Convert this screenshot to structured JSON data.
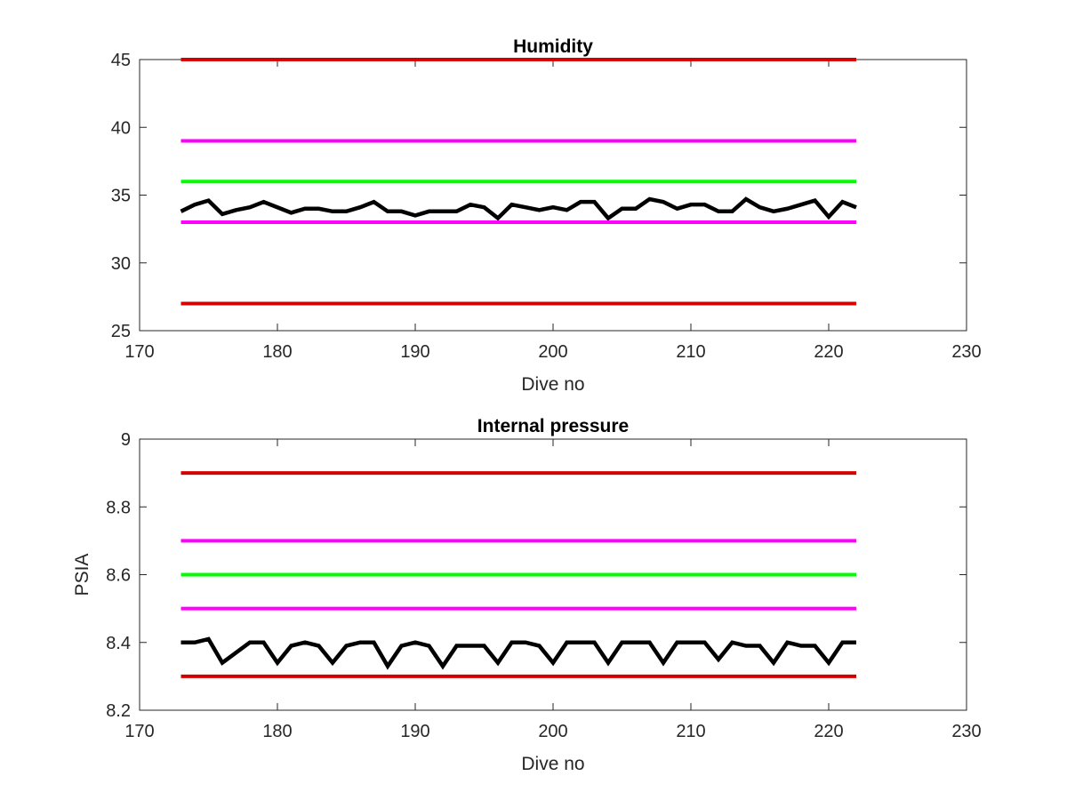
{
  "chart_data": [
    {
      "type": "line",
      "title": "Humidity",
      "xlabel": "Dive no",
      "ylabel": "",
      "xlim": [
        170,
        230
      ],
      "ylim": [
        25,
        45
      ],
      "xticks": [
        170,
        180,
        190,
        200,
        210,
        220,
        230
      ],
      "yticks": [
        25,
        30,
        35,
        40,
        45
      ],
      "grid": false,
      "legend": "none",
      "series": [
        {
          "color": "#d40000",
          "x": [
            173,
            222
          ],
          "values": [
            45,
            45
          ]
        },
        {
          "color": "#ff00ff",
          "x": [
            173,
            222
          ],
          "values": [
            39,
            39
          ]
        },
        {
          "color": "#00ff00",
          "x": [
            173,
            222
          ],
          "values": [
            36,
            36
          ]
        },
        {
          "color": "#000000",
          "x": [
            173,
            174,
            175,
            176,
            177,
            178,
            179,
            180,
            181,
            182,
            183,
            184,
            185,
            186,
            187,
            188,
            189,
            190,
            191,
            192,
            193,
            194,
            195,
            196,
            197,
            198,
            199,
            200,
            201,
            202,
            203,
            204,
            205,
            206,
            207,
            208,
            209,
            210,
            211,
            212,
            213,
            214,
            215,
            216,
            217,
            218,
            219,
            220,
            221,
            222
          ],
          "values": [
            33.8,
            34.3,
            34.6,
            33.6,
            33.9,
            34.1,
            34.5,
            34.1,
            33.7,
            34.0,
            34.0,
            33.8,
            33.8,
            34.1,
            34.5,
            33.8,
            33.8,
            33.5,
            33.8,
            33.8,
            33.8,
            34.3,
            34.1,
            33.3,
            34.3,
            34.1,
            33.9,
            34.1,
            33.9,
            34.5,
            34.5,
            33.3,
            34.0,
            34.0,
            34.7,
            34.5,
            34.0,
            34.3,
            34.3,
            33.8,
            33.8,
            34.7,
            34.1,
            33.8,
            34.0,
            34.3,
            34.6,
            33.4,
            34.5,
            34.1
          ]
        },
        {
          "color": "#ff00ff",
          "x": [
            173,
            222
          ],
          "values": [
            33,
            33
          ]
        },
        {
          "color": "#d40000",
          "x": [
            173,
            222
          ],
          "values": [
            27,
            27
          ]
        }
      ]
    },
    {
      "type": "line",
      "title": "Internal pressure",
      "xlabel": "Dive no",
      "ylabel": "PSIA",
      "xlim": [
        170,
        230
      ],
      "ylim": [
        8.2,
        9
      ],
      "xticks": [
        170,
        180,
        190,
        200,
        210,
        220,
        230
      ],
      "yticks": [
        8.2,
        8.4,
        8.6,
        8.8,
        9
      ],
      "ytick_labels": [
        "8.2",
        "8.4",
        "8.6",
        "8.8",
        "9"
      ],
      "grid": false,
      "legend": "none",
      "series": [
        {
          "color": "#d40000",
          "x": [
            173,
            222
          ],
          "values": [
            8.9,
            8.9
          ]
        },
        {
          "color": "#ff00ff",
          "x": [
            173,
            222
          ],
          "values": [
            8.7,
            8.7
          ]
        },
        {
          "color": "#00ff00",
          "x": [
            173,
            222
          ],
          "values": [
            8.6,
            8.6
          ]
        },
        {
          "color": "#ff00ff",
          "x": [
            173,
            222
          ],
          "values": [
            8.5,
            8.5
          ]
        },
        {
          "color": "#000000",
          "x": [
            173,
            174,
            175,
            176,
            177,
            178,
            179,
            180,
            181,
            182,
            183,
            184,
            185,
            186,
            187,
            188,
            189,
            190,
            191,
            192,
            193,
            194,
            195,
            196,
            197,
            198,
            199,
            200,
            201,
            202,
            203,
            204,
            205,
            206,
            207,
            208,
            209,
            210,
            211,
            212,
            213,
            214,
            215,
            216,
            217,
            218,
            219,
            220,
            221,
            222
          ],
          "values": [
            8.4,
            8.4,
            8.41,
            8.34,
            8.37,
            8.4,
            8.4,
            8.34,
            8.39,
            8.4,
            8.39,
            8.34,
            8.39,
            8.4,
            8.4,
            8.33,
            8.39,
            8.4,
            8.39,
            8.33,
            8.39,
            8.39,
            8.39,
            8.34,
            8.4,
            8.4,
            8.39,
            8.34,
            8.4,
            8.4,
            8.4,
            8.34,
            8.4,
            8.4,
            8.4,
            8.34,
            8.4,
            8.4,
            8.4,
            8.35,
            8.4,
            8.39,
            8.39,
            8.34,
            8.4,
            8.39,
            8.39,
            8.34,
            8.4,
            8.4
          ]
        },
        {
          "color": "#d40000",
          "x": [
            173,
            222
          ],
          "values": [
            8.3,
            8.3
          ]
        }
      ]
    }
  ]
}
